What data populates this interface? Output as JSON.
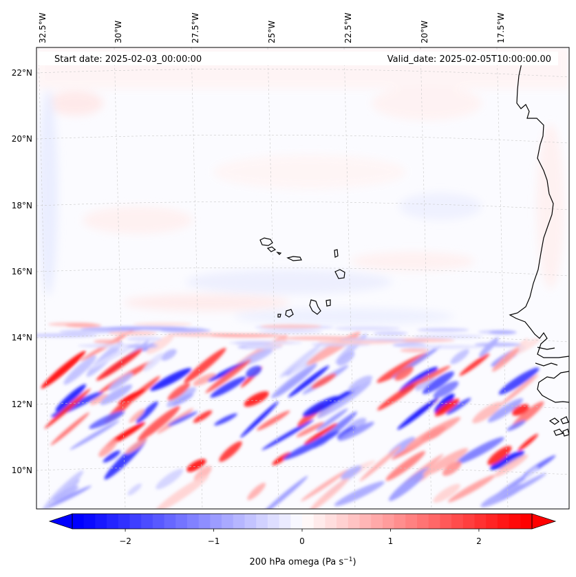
{
  "header": {
    "start_date": "Start date: 2025-02-03_00:00:00",
    "valid_date": "Valid_date: 2025-02-05T10:00:00.00"
  },
  "map": {
    "longitude_labels": [
      "32.5°W",
      "30°W",
      "27.5°W",
      "25°W",
      "22.5°W",
      "20°W",
      "17.5°W"
    ],
    "latitude_labels": [
      "22°N",
      "20°N",
      "18°N",
      "16°N",
      "14°N",
      "12°N",
      "10°N"
    ],
    "features": [
      "Cape Verde islands",
      "West African coastline"
    ]
  },
  "colorbar": {
    "title": "200 hPa omega (Pa s",
    "title_superscript": "−1",
    "title_close": ")",
    "tick_labels": [
      "−2",
      "−1",
      "0",
      "1",
      "2"
    ],
    "min": -2.6,
    "max": 2.6,
    "colormap": "bwr",
    "low_color": "#0000ff",
    "mid_color": "#ffffff",
    "high_color": "#ff0000"
  }
}
